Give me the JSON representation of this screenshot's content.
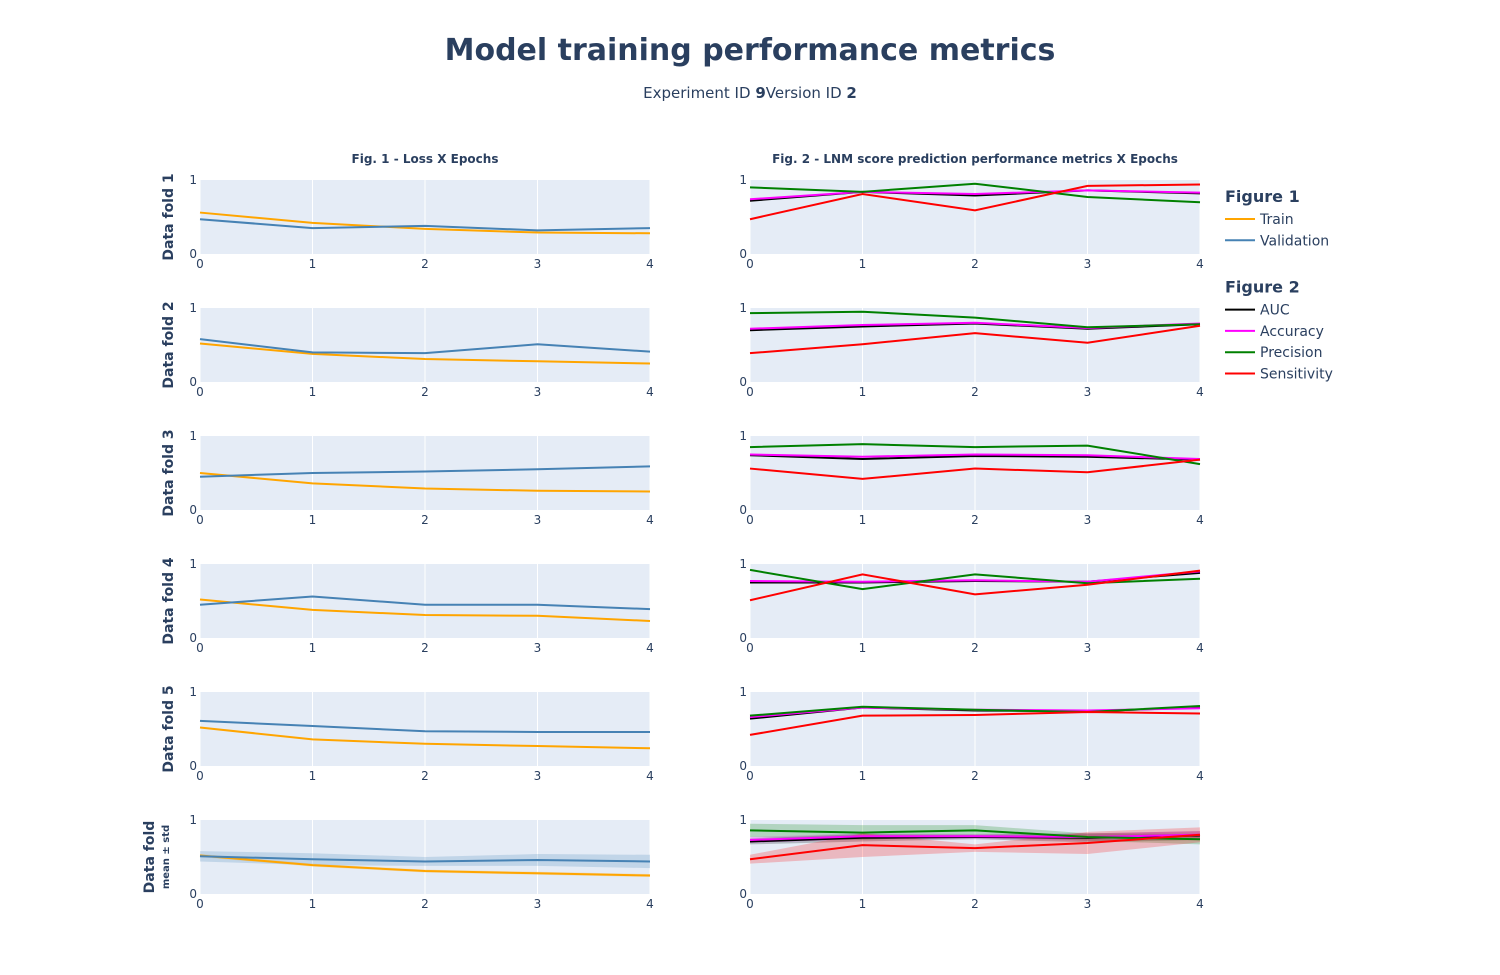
{
  "header": {
    "title": "Model training performance metrics",
    "experiment_label": "Experiment ID ",
    "experiment_value": "9",
    "version_label": "Version ID ",
    "version_value": "2"
  },
  "chart_data": {
    "type": "line",
    "x": [
      0,
      1,
      2,
      3,
      4
    ],
    "xticks": [
      "0",
      "1",
      "2",
      "3",
      "4"
    ],
    "yticks": [
      "0",
      "1"
    ],
    "ylim": [
      0,
      1
    ],
    "grid": true,
    "panel_titles": [
      "Fig. 1 - Loss X Epochs",
      "Fig. 2 - LNM score prediction performance metrics X Epochs"
    ],
    "row_labels": [
      {
        "label": "Data fold 1",
        "sub": ""
      },
      {
        "label": "Data fold 2",
        "sub": ""
      },
      {
        "label": "Data fold 3",
        "sub": ""
      },
      {
        "label": "Data fold 4",
        "sub": ""
      },
      {
        "label": "Data fold 5",
        "sub": ""
      },
      {
        "label": "Data fold",
        "sub": "mean ± std"
      }
    ],
    "colors": {
      "Train": "#ffa500",
      "Validation": "#4682b4",
      "AUC": "#000000",
      "Accuracy": "#ff00ff",
      "Precision": "#008000",
      "Sensitivity": "#ff0000",
      "plot_bg": "#e5ecf6",
      "grid": "#ffffff"
    },
    "legend": {
      "groups": [
        {
          "title": "Figure 1",
          "items": [
            "Train",
            "Validation"
          ]
        },
        {
          "title": "Figure 2",
          "items": [
            "AUC",
            "Accuracy",
            "Precision",
            "Sensitivity"
          ]
        }
      ]
    },
    "folds": [
      {
        "loss": {
          "Train": [
            0.56,
            0.42,
            0.34,
            0.29,
            0.28
          ],
          "Validation": [
            0.47,
            0.35,
            0.38,
            0.32,
            0.35
          ]
        },
        "metrics": {
          "AUC": [
            0.72,
            0.84,
            0.79,
            0.86,
            0.82
          ],
          "Accuracy": [
            0.74,
            0.84,
            0.81,
            0.86,
            0.83
          ],
          "Precision": [
            0.9,
            0.84,
            0.95,
            0.77,
            0.7
          ],
          "Sensitivity": [
            0.47,
            0.81,
            0.59,
            0.92,
            0.94
          ]
        }
      },
      {
        "loss": {
          "Train": [
            0.52,
            0.38,
            0.31,
            0.28,
            0.25
          ],
          "Validation": [
            0.58,
            0.4,
            0.39,
            0.51,
            0.41
          ]
        },
        "metrics": {
          "AUC": [
            0.7,
            0.75,
            0.79,
            0.72,
            0.78
          ],
          "Accuracy": [
            0.72,
            0.77,
            0.8,
            0.73,
            0.79
          ],
          "Precision": [
            0.93,
            0.95,
            0.87,
            0.74,
            0.78
          ],
          "Sensitivity": [
            0.39,
            0.51,
            0.66,
            0.53,
            0.76
          ]
        }
      },
      {
        "loss": {
          "Train": [
            0.5,
            0.36,
            0.29,
            0.26,
            0.25
          ],
          "Validation": [
            0.45,
            0.5,
            0.52,
            0.55,
            0.59
          ]
        },
        "metrics": {
          "AUC": [
            0.74,
            0.69,
            0.73,
            0.72,
            0.68
          ],
          "Accuracy": [
            0.75,
            0.72,
            0.75,
            0.74,
            0.69
          ],
          "Precision": [
            0.85,
            0.89,
            0.85,
            0.87,
            0.62
          ],
          "Sensitivity": [
            0.56,
            0.42,
            0.56,
            0.51,
            0.68
          ]
        }
      },
      {
        "loss": {
          "Train": [
            0.52,
            0.38,
            0.31,
            0.3,
            0.23
          ],
          "Validation": [
            0.45,
            0.56,
            0.45,
            0.45,
            0.39
          ]
        },
        "metrics": {
          "AUC": [
            0.75,
            0.75,
            0.77,
            0.76,
            0.88
          ],
          "Accuracy": [
            0.77,
            0.76,
            0.78,
            0.76,
            0.9
          ],
          "Precision": [
            0.92,
            0.66,
            0.86,
            0.74,
            0.8
          ],
          "Sensitivity": [
            0.51,
            0.86,
            0.59,
            0.72,
            0.91
          ]
        }
      },
      {
        "loss": {
          "Train": [
            0.52,
            0.36,
            0.3,
            0.27,
            0.24
          ],
          "Validation": [
            0.61,
            0.54,
            0.47,
            0.46,
            0.46
          ]
        },
        "metrics": {
          "AUC": [
            0.64,
            0.79,
            0.75,
            0.74,
            0.79
          ],
          "Accuracy": [
            0.66,
            0.79,
            0.76,
            0.75,
            0.78
          ],
          "Precision": [
            0.68,
            0.8,
            0.76,
            0.73,
            0.81
          ],
          "Sensitivity": [
            0.42,
            0.68,
            0.69,
            0.73,
            0.71
          ]
        }
      },
      {
        "loss": {
          "Train": [
            0.52,
            0.39,
            0.31,
            0.28,
            0.25
          ],
          "Validation": [
            0.51,
            0.47,
            0.44,
            0.46,
            0.44
          ]
        },
        "loss_std": {
          "Train": [
            0.02,
            0.02,
            0.02,
            0.02,
            0.02
          ],
          "Validation": [
            0.07,
            0.08,
            0.06,
            0.08,
            0.09
          ]
        },
        "metrics": {
          "AUC": [
            0.71,
            0.76,
            0.77,
            0.76,
            0.79
          ],
          "Accuracy": [
            0.73,
            0.78,
            0.78,
            0.77,
            0.8
          ],
          "Precision": [
            0.86,
            0.83,
            0.86,
            0.77,
            0.74
          ],
          "Sensitivity": [
            0.47,
            0.66,
            0.62,
            0.69,
            0.8
          ]
        },
        "metrics_std": {
          "AUC": [
            0.04,
            0.05,
            0.03,
            0.06,
            0.06
          ],
          "Accuracy": [
            0.04,
            0.04,
            0.03,
            0.05,
            0.05
          ],
          "Precision": [
            0.09,
            0.1,
            0.07,
            0.05,
            0.07
          ],
          "Sensitivity": [
            0.06,
            0.16,
            0.05,
            0.15,
            0.1
          ]
        }
      }
    ]
  }
}
